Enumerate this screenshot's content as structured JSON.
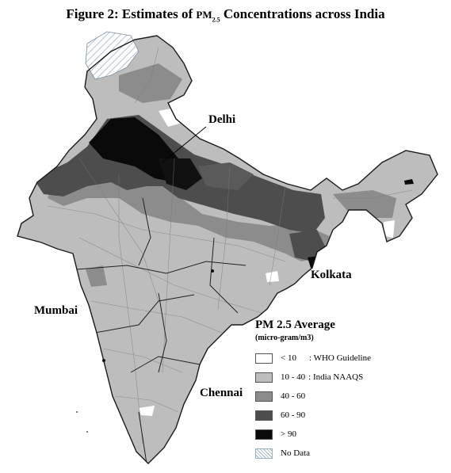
{
  "title": {
    "prefix": "Figure 2: Estimates of ",
    "pm": "PM",
    "sub": "2.5",
    "suffix": " Concentrations across India"
  },
  "cities": [
    {
      "name": "Delhi"
    },
    {
      "name": "Kolkata"
    },
    {
      "name": "Mumbai"
    },
    {
      "name": "Chennai"
    }
  ],
  "legend": {
    "title": "PM 2.5 Average",
    "unit": "(micro-gram/m3)",
    "items": [
      {
        "range": "< 10",
        "label": ": WHO Guideline",
        "color": "#ffffff"
      },
      {
        "range": "10 - 40",
        "label": ": India NAAQS",
        "color": "#bdbdbd"
      },
      {
        "range": "40 - 60",
        "label": "",
        "color": "#8c8c8c"
      },
      {
        "range": "60 - 90",
        "label": "",
        "color": "#4d4d4d"
      },
      {
        "range": "> 90",
        "label": "",
        "color": "#0a0a0a"
      },
      {
        "range": "No Data",
        "label": "",
        "color": "hatched"
      }
    ]
  }
}
